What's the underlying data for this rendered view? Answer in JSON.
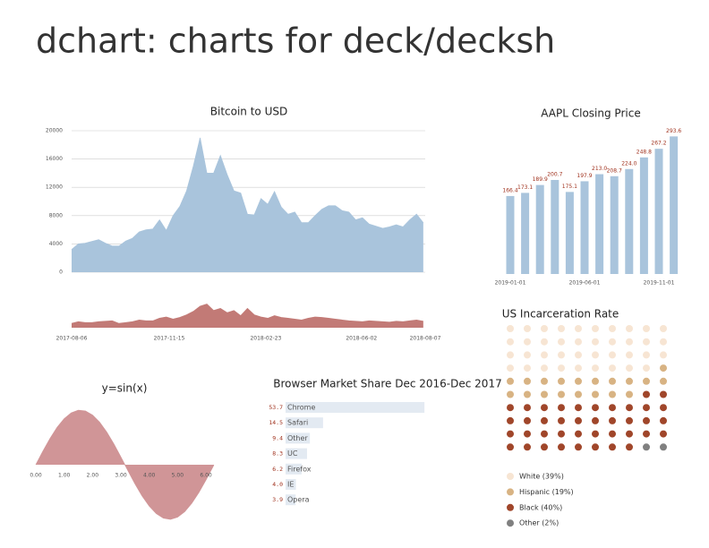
{
  "title": "dchart: charts for deck/decksh",
  "chart_data": [
    {
      "type": "area",
      "title": "Bitcoin to USD",
      "color": "#a9c4dc",
      "x": [
        "2017-08-06",
        "2017-08-13",
        "2017-08-20",
        "2017-08-27",
        "2017-09-03",
        "2017-09-10",
        "2017-09-17",
        "2017-09-24",
        "2017-10-01",
        "2017-10-08",
        "2017-10-15",
        "2017-10-22",
        "2017-10-29",
        "2017-11-05",
        "2017-11-12",
        "2017-11-19",
        "2017-11-26",
        "2017-12-03",
        "2017-12-10",
        "2017-12-17",
        "2017-12-24",
        "2017-12-31",
        "2018-01-07",
        "2018-01-14",
        "2018-01-21",
        "2018-01-28",
        "2018-02-04",
        "2018-02-11",
        "2018-02-18",
        "2018-02-25",
        "2018-03-04",
        "2018-03-11",
        "2018-03-18",
        "2018-03-25",
        "2018-04-01",
        "2018-04-08",
        "2018-04-15",
        "2018-04-22",
        "2018-04-29",
        "2018-05-06",
        "2018-05-13",
        "2018-05-20",
        "2018-05-27",
        "2018-06-03",
        "2018-06-10",
        "2018-06-17",
        "2018-06-24",
        "2018-07-01",
        "2018-07-08",
        "2018-07-15",
        "2018-07-22",
        "2018-07-29",
        "2018-08-05"
      ],
      "values": [
        3200,
        4000,
        4100,
        4350,
        4600,
        4100,
        3700,
        3700,
        4400,
        4800,
        5700,
        6000,
        6100,
        7400,
        5900,
        8000,
        9300,
        11500,
        15000,
        19000,
        14000,
        14000,
        16500,
        13800,
        11500,
        11200,
        8200,
        8100,
        10400,
        9600,
        11400,
        9200,
        8200,
        8500,
        7000,
        7000,
        8000,
        8900,
        9400,
        9400,
        8700,
        8500,
        7400,
        7700,
        6800,
        6500,
        6200,
        6400,
        6700,
        6400,
        7400,
        8200,
        7000
      ],
      "xlim": [
        "2017-08-06",
        "2018-08-07"
      ],
      "xticks": [
        "2017-08-06",
        "2017-11-15",
        "2018-02-23",
        "2018-06-02",
        "2018-08-07"
      ],
      "ylim": [
        0,
        20000
      ],
      "yticks": [
        0,
        4000,
        8000,
        12000,
        16000,
        20000
      ],
      "grid": true,
      "volume": {
        "color": "#c27a76",
        "ylim": [
          0,
          100
        ],
        "values": [
          10,
          14,
          12,
          12,
          14,
          15,
          16,
          10,
          12,
          14,
          18,
          16,
          16,
          22,
          25,
          20,
          24,
          30,
          38,
          50,
          55,
          40,
          45,
          35,
          40,
          28,
          45,
          30,
          25,
          22,
          28,
          24,
          22,
          20,
          18,
          22,
          25,
          24,
          22,
          20,
          18,
          16,
          15,
          14,
          16,
          15,
          14,
          13,
          15,
          14,
          16,
          18,
          15
        ]
      }
    },
    {
      "type": "bar",
      "title": "AAPL Closing Price",
      "color": "#a9c4dc",
      "label_color": "#a0321e",
      "categories": [
        "2019-01-01",
        null,
        null,
        null,
        null,
        "2019-06-01",
        null,
        null,
        null,
        null,
        "2019-11-01",
        null
      ],
      "values": [
        166.4,
        173.1,
        189.9,
        200.7,
        175.1,
        197.9,
        213.0,
        208.7,
        224.0,
        248.8,
        267.2,
        293.6
      ],
      "value_labels": [
        "166.4",
        "173.1",
        "189.9",
        "200.7",
        "175.1",
        "197.9",
        "213.0",
        "208.7",
        "224.0",
        "248.8",
        "267.2",
        "293.6"
      ],
      "ylim": [
        0,
        300
      ]
    },
    {
      "type": "waffle",
      "title": "US Incarceration Rate",
      "categories": [
        "White (39%)",
        "Hispanic (19%)",
        "Black (40%)",
        "Other (2%)"
      ],
      "values": [
        39,
        19,
        40,
        2
      ],
      "colors": [
        "#f7e5d3",
        "#d8b383",
        "#a0462a",
        "#808080"
      ]
    },
    {
      "type": "area",
      "title": "y=sin(x)",
      "color": "#d09597",
      "x": [
        0,
        0.25,
        0.5,
        0.75,
        1,
        1.25,
        1.5,
        1.75,
        2,
        2.25,
        2.5,
        2.75,
        3,
        3.25,
        3.5,
        3.75,
        4,
        4.25,
        4.5,
        4.75,
        5,
        5.25,
        5.5,
        5.75,
        6,
        6.25,
        6.28
      ],
      "values": [
        0,
        0.247,
        0.479,
        0.682,
        0.841,
        0.949,
        0.997,
        0.984,
        0.909,
        0.778,
        0.598,
        0.382,
        0.141,
        -0.108,
        -0.351,
        -0.572,
        -0.757,
        -0.895,
        -0.978,
        -0.999,
        -0.959,
        -0.859,
        -0.706,
        -0.508,
        -0.279,
        -0.033,
        -0.003
      ],
      "xlim": [
        0,
        6.28
      ],
      "xticks": [
        {
          "value": 0,
          "label": "0.00"
        },
        {
          "value": 1,
          "label": "1.00"
        },
        {
          "value": 2,
          "label": "2.00"
        },
        {
          "value": 3,
          "label": "3.00"
        },
        {
          "value": 4,
          "label": "4.00"
        },
        {
          "value": 5,
          "label": "5.00"
        },
        {
          "value": 6,
          "label": "6.00"
        }
      ],
      "ylim": [
        -1,
        1
      ]
    },
    {
      "type": "hbar",
      "title": "Browser Market Share Dec 2016-Dec 2017",
      "color": "#e3eaf2",
      "label_color": "#a0321e",
      "categories": [
        "Chrome",
        "Safari",
        "Other",
        "UC",
        "Firefox",
        "IE",
        "Opera"
      ],
      "values": [
        53.7,
        14.5,
        9.4,
        8.3,
        6.2,
        4.0,
        3.9
      ],
      "value_labels": [
        "53.7",
        "14.5",
        "9.4",
        "8.3",
        "6.2",
        "4.0",
        "3.9"
      ],
      "xlim": [
        0,
        54
      ]
    }
  ]
}
